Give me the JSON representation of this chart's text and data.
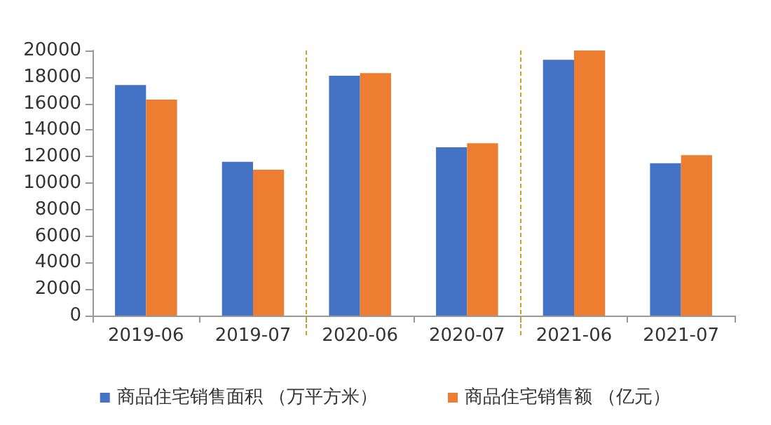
{
  "chart_data": {
    "type": "bar",
    "categories": [
      "2019-06",
      "2019-07",
      "2020-06",
      "2020-07",
      "2021-06",
      "2021-07"
    ],
    "series": [
      {
        "name": "商品住宅销售面积 （万平方米）",
        "color": "#4472c4",
        "values": [
          17400,
          11600,
          18100,
          12700,
          19300,
          11500
        ]
      },
      {
        "name": "商品住宅销售额 （亿元）",
        "color": "#ed7d31",
        "values": [
          16300,
          11000,
          18300,
          13000,
          20000,
          12100
        ]
      }
    ],
    "ylim": [
      0,
      20000
    ],
    "yticks": [
      0,
      2000,
      4000,
      6000,
      8000,
      10000,
      12000,
      14000,
      16000,
      18000,
      20000
    ],
    "grid": false,
    "legend": "bottom"
  }
}
